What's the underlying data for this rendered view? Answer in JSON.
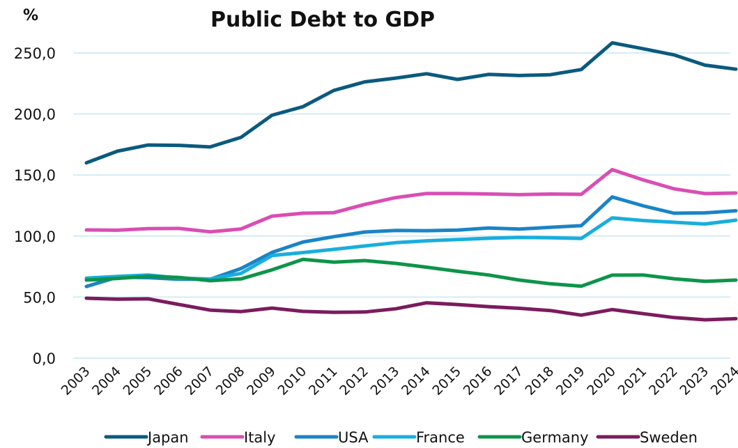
{
  "chart_data": {
    "type": "line",
    "title": "Public Debt to GDP",
    "unit_label": "%",
    "ylim": [
      0,
      250
    ],
    "yticks": [
      "0,0",
      "50,0",
      "100,0",
      "150,0",
      "200,0",
      "250,0"
    ],
    "ytick_values": [
      0,
      50,
      100,
      150,
      200,
      250
    ],
    "grid": true,
    "legend_position": "bottom",
    "categories": [
      "2003",
      "2004",
      "2005",
      "2006",
      "2007",
      "2008",
      "2009",
      "2010",
      "2011",
      "2012",
      "2013",
      "2014",
      "2015",
      "2016",
      "2017",
      "2018",
      "2019",
      "2020",
      "2021",
      "2022",
      "2023",
      "2024"
    ],
    "series": [
      {
        "name": "Japan",
        "color": "#0b5a7e",
        "values": [
          160.0,
          169.5,
          174.6,
          174.3,
          173.0,
          180.9,
          199.0,
          206.0,
          219.3,
          226.3,
          229.4,
          233.0,
          228.3,
          232.4,
          231.5,
          232.2,
          236.4,
          258.3,
          253.5,
          248.4,
          240.0,
          236.7
        ]
      },
      {
        "name": "Italy",
        "color": "#d94eb3",
        "values": [
          105.0,
          104.8,
          106.1,
          106.2,
          103.5,
          105.8,
          116.3,
          118.7,
          119.2,
          125.9,
          131.5,
          134.9,
          134.9,
          134.5,
          133.9,
          134.4,
          134.2,
          154.4,
          146.0,
          138.7,
          134.8,
          135.3
        ]
      },
      {
        "name": "USA",
        "color": "#1a84c6",
        "values": [
          58.7,
          66.3,
          65.9,
          64.6,
          64.6,
          73.4,
          86.6,
          95.1,
          99.5,
          103.3,
          104.6,
          104.4,
          104.9,
          106.6,
          105.7,
          107.2,
          108.5,
          132.0,
          124.8,
          118.7,
          119.0,
          120.7
        ]
      },
      {
        "name": "France",
        "color": "#19aedd",
        "values": [
          65.5,
          66.9,
          68.1,
          65.6,
          64.8,
          69.4,
          84.0,
          86.5,
          89.1,
          91.9,
          94.6,
          96.1,
          97.2,
          98.2,
          98.9,
          98.6,
          98.0,
          114.9,
          112.7,
          111.3,
          109.9,
          113.0
        ]
      },
      {
        "name": "Germany",
        "color": "#0e944a",
        "values": [
          63.9,
          65.3,
          67.0,
          66.1,
          63.4,
          64.9,
          72.3,
          80.9,
          78.6,
          79.9,
          77.6,
          74.5,
          71.1,
          68.1,
          63.9,
          60.9,
          58.9,
          68.0,
          68.1,
          65.0,
          62.9,
          63.9
        ]
      },
      {
        "name": "Sweden",
        "color": "#7a1c5e",
        "values": [
          49.1,
          48.3,
          48.6,
          43.9,
          39.3,
          38.1,
          41.0,
          38.3,
          37.5,
          37.8,
          40.4,
          45.3,
          43.9,
          42.2,
          40.8,
          39.0,
          35.2,
          39.8,
          36.4,
          33.2,
          31.4,
          32.3
        ]
      }
    ]
  }
}
